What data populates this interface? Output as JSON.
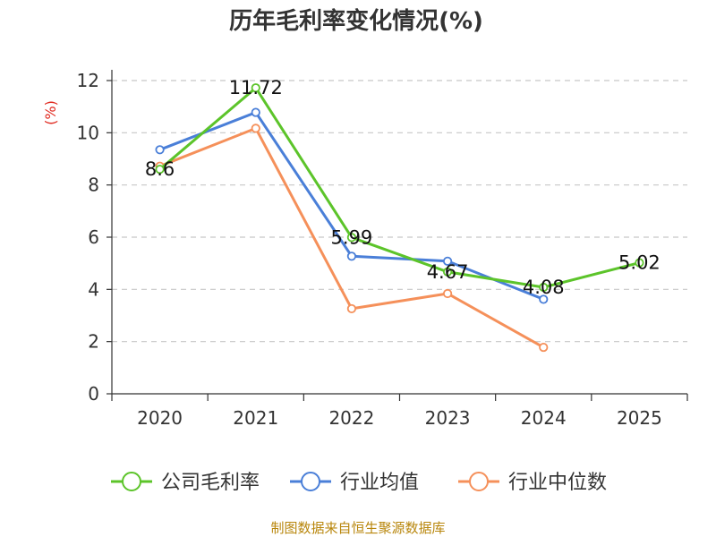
{
  "chart_data": {
    "type": "line",
    "title": "历年毛利率变化情况(%)",
    "ylabel": "(%)",
    "xlabel": "",
    "categories": [
      "2020",
      "2021",
      "2022",
      "2023",
      "2024",
      "2025"
    ],
    "ylim": [
      0,
      12
    ],
    "yticks": [
      0,
      2,
      4,
      6,
      8,
      10,
      12
    ],
    "grid": true,
    "legend_position": "bottom",
    "series": [
      {
        "name": "公司毛利率",
        "color": "#5cc42a",
        "values": [
          8.6,
          11.72,
          5.99,
          4.67,
          4.08,
          5.02
        ],
        "labels": [
          "8.6",
          "11.72",
          "5.99",
          "4.67",
          "4.08",
          "5.02"
        ]
      },
      {
        "name": "行业均值",
        "color": "#4a7fd8",
        "values": [
          9.35,
          10.78,
          5.27,
          5.08,
          3.62,
          null
        ]
      },
      {
        "name": "行业中位数",
        "color": "#f5905a",
        "values": [
          8.72,
          10.17,
          3.26,
          3.84,
          1.78,
          null
        ]
      }
    ]
  },
  "footer": {
    "source": "制图数据来自恒生聚源数据库"
  }
}
